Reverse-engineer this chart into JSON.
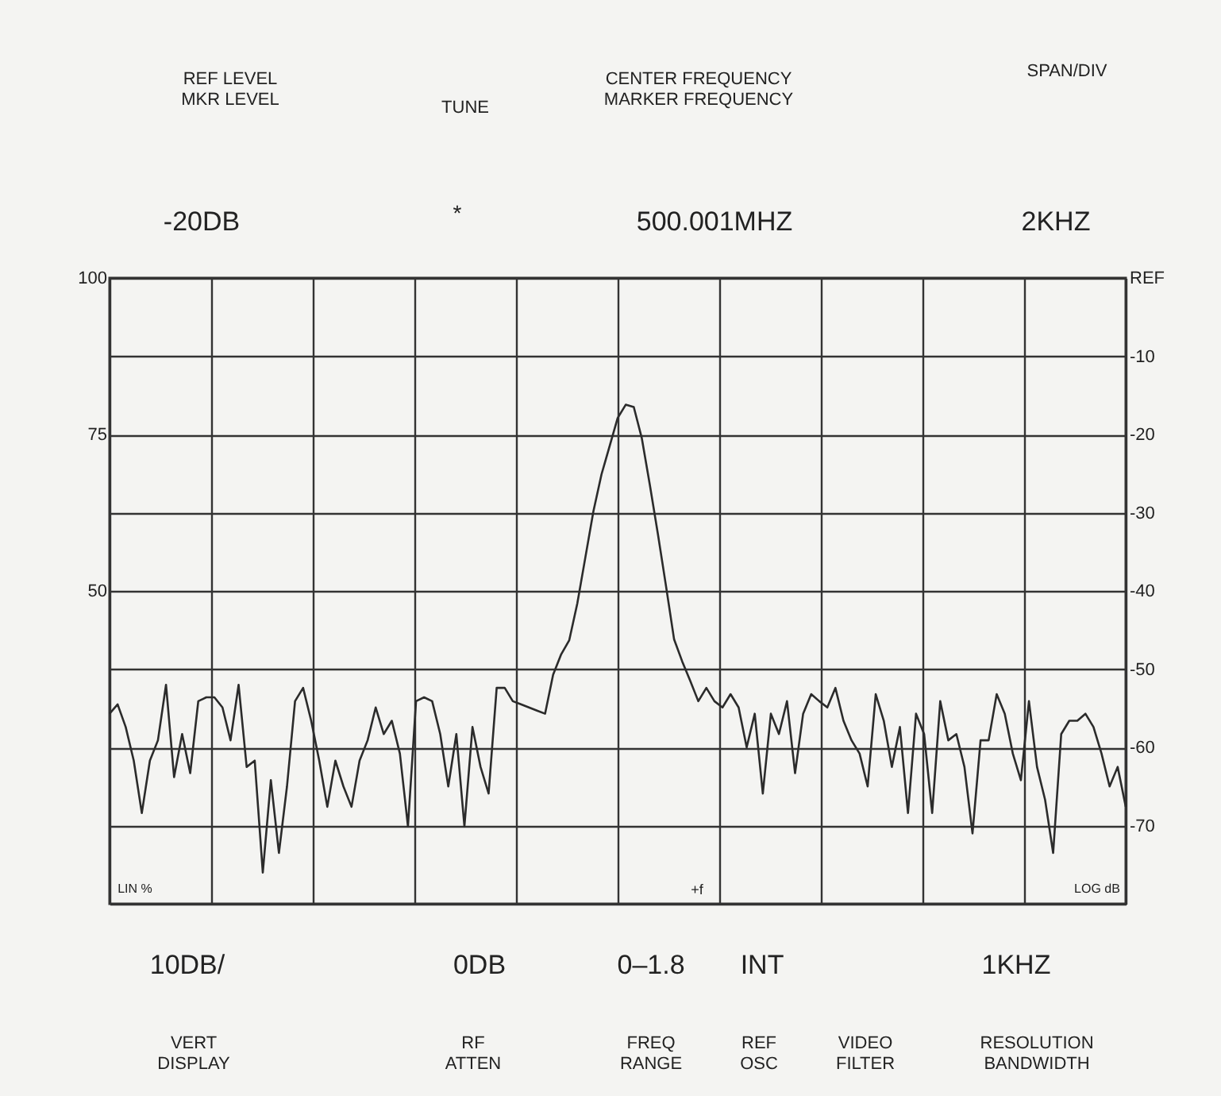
{
  "chart_data": {
    "type": "line",
    "annotations": [
      "REF LEVEL\nMKR LEVEL",
      "TUNE",
      "CENTER FREQUENCY\nMARKER FREQUENCY",
      "SPAN/DIV",
      "-20DB",
      "*",
      "500.001MHZ",
      "2KHZ",
      "10DB/",
      "0DB",
      "0–1.8",
      "INT",
      "1KHZ",
      "VERT\nDISPLAY",
      "RF\nATTEN",
      "FREQ\nRANGE",
      "REF\nOSC",
      "VIDEO\nFILTER",
      "RESOLUTION\nBANDWIDTH",
      "LIN %",
      "LOG dB",
      "+f"
    ],
    "categories": [
      null,
      null,
      null,
      null,
      null,
      null,
      null,
      null,
      null,
      null,
      null,
      null,
      null,
      null,
      null,
      null,
      null,
      null,
      null,
      null,
      null,
      null,
      null,
      null,
      null,
      null,
      null,
      null,
      null,
      null,
      null,
      null,
      null,
      null,
      null,
      null,
      null,
      null,
      null,
      null,
      null,
      null,
      null,
      null,
      null,
      null,
      null,
      null,
      null,
      null,
      null,
      null,
      null,
      null,
      null,
      null,
      null,
      null,
      null,
      null,
      null,
      null,
      null,
      null,
      null,
      null,
      null,
      null,
      null,
      null,
      null,
      null,
      null,
      null,
      null,
      null,
      null,
      null,
      null,
      null,
      null,
      null,
      null,
      null,
      null,
      null,
      null,
      null,
      null,
      null,
      null,
      null,
      null,
      null,
      null,
      null,
      null,
      null,
      null,
      null,
      null,
      null,
      null,
      null,
      null,
      null,
      null,
      null,
      null,
      null,
      null,
      null,
      null,
      null,
      null,
      null,
      null,
      null,
      null,
      null,
      null,
      null,
      null,
      null,
      null,
      null,
      null
    ],
    "ylim": [
      -80,
      0
    ],
    "yticks": [
      {
        "value": 0,
        "label": "REF"
      },
      -10,
      -20,
      -30,
      -40,
      -50,
      -60,
      -70,
      {
        "value": -80,
        "label": null
      }
    ],
    "y2lim": [
      0,
      100
    ],
    "y2ticks": [
      100,
      75,
      50
    ],
    "tick_labels": "y",
    "grid": true,
    "legend": false,
    "marker": "none",
    "line_style": "solid",
    "series": [
      {
        "color": "#2b2b2b",
        "values": [
          -55.7,
          -54.5,
          -57.4,
          -61.7,
          -68.4,
          -61.7,
          -59.1,
          -52.0,
          -63.8,
          -58.3,
          -63.3,
          -54.1,
          -53.6,
          -53.6,
          -54.9,
          -59.1,
          -52.0,
          -62.5,
          -61.7,
          -76.0,
          -64.2,
          -73.5,
          -65.0,
          -54.1,
          -52.4,
          -56.6,
          -61.7,
          -67.6,
          -61.7,
          -65.0,
          -67.6,
          -61.7,
          -59.1,
          -54.9,
          -58.3,
          -56.6,
          -60.8,
          -70.1,
          -54.1,
          -53.6,
          -54.1,
          -58.3,
          -65.0,
          -58.3,
          -70.1,
          -57.4,
          -62.5,
          -65.9,
          -52.4,
          -52.4,
          -54.1,
          -54.5,
          -54.9,
          -55.3,
          -55.7,
          -50.7,
          -48.1,
          -46.3,
          -41.6,
          -35.7,
          -29.8,
          -25.1,
          -21.5,
          -17.9,
          -16.2,
          -16.5,
          -20.5,
          -26.5,
          -32.8,
          -39.4,
          -46.2,
          -49.0,
          -51.5,
          -54.1,
          -52.4,
          -54.1,
          -54.9,
          -53.2,
          -54.9,
          -60.0,
          -55.7,
          -65.9,
          -55.7,
          -58.3,
          -54.1,
          -63.3,
          -55.7,
          -53.2,
          -54.1,
          -54.9,
          -52.4,
          -56.6,
          -59.1,
          -60.8,
          -65.0,
          -53.2,
          -56.6,
          -62.5,
          -57.4,
          -68.4,
          -55.7,
          -58.3,
          -68.4,
          -54.1,
          -59.1,
          -58.3,
          -62.5,
          -71.0,
          -59.1,
          -59.1,
          -53.2,
          -55.7,
          -60.8,
          -64.2,
          -54.1,
          -62.5,
          -66.7,
          -73.5,
          -58.3,
          -56.6,
          -56.6,
          -55.7,
          -57.4,
          -60.8,
          -65.0,
          -62.5,
          -67.6
        ]
      }
    ]
  }
}
